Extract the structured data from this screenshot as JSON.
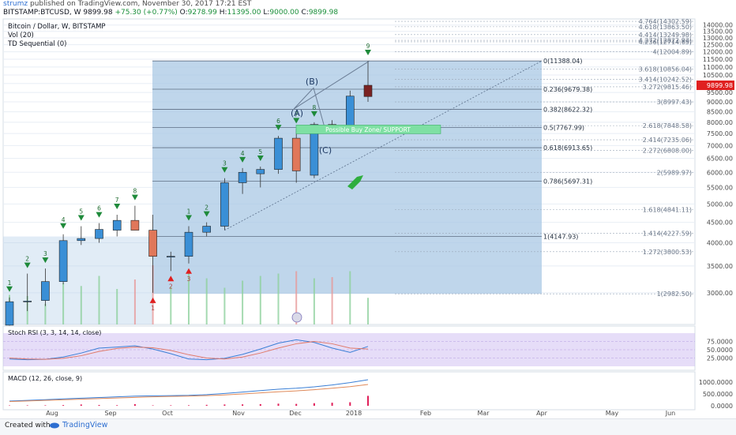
{
  "header": {
    "author": "strumz",
    "published_text": "published on TradingView.com, November 30, 2017 17:21 EST",
    "symbol_info": "BITSTAMP:BTCUSD, W  9899.98",
    "change": "+75.30 (+0.77%)",
    "ohlc": {
      "o_label": "O:",
      "o": "9278.99",
      "h_label": "H:",
      "h": "11395.00",
      "l_label": "L:",
      "l": "9000.00",
      "c_label": "C:",
      "c": "9899.98"
    }
  },
  "legend": {
    "title": "Bitcoin / Dollar, W, BITSTAMP",
    "vol": "Vol (20)",
    "td": "TD Sequential (0)",
    "stoch": "Stoch RSI (3, 3, 14, 14, close)",
    "macd": "MACD (12, 26, close, 9)"
  },
  "colors": {
    "up": "#3a8fd6",
    "down": "#e0775a",
    "background": "#ffffff",
    "zone": "#a9c8e4",
    "stoch_band": "#c8b4f0",
    "grid": "#e8eef5",
    "price_badge": "#e02020",
    "buy_zone": "#7ee0a3",
    "arrow_down": "#1e8a3a",
    "arrow_up": "#e02020"
  },
  "chart_data": {
    "type": "candlestick",
    "title": "Bitcoin / Dollar, W, BITSTAMP",
    "y_scale": "log",
    "ylim": [
      2500,
      14500
    ],
    "y_ticks": [
      3000,
      3500,
      4000,
      4500,
      5000,
      5500,
      6000,
      6500,
      7000,
      7500,
      8000,
      8500,
      9000,
      9500,
      10000,
      10500,
      11000,
      11500,
      12000,
      12500,
      13000,
      13500,
      14000
    ],
    "y_tick_labels": [
      "3000.00",
      "3500.00",
      "4000.00",
      "4500.00",
      "5000.00",
      "5500.00",
      "6000.00",
      "6500.00",
      "7000.00",
      "7500.00",
      "8000.00",
      "8500.00",
      "9000.00",
      "9500.00",
      "10000.00",
      "10500.00",
      "11000.00",
      "11500.00",
      "12000.00",
      "12500.00",
      "13000.00",
      "13500.00",
      "14000.00"
    ],
    "x_tick_labels": [
      "Aug",
      "Sep",
      "Oct",
      "Nov",
      "Dec",
      "2018",
      "Feb",
      "Mar",
      "Apr",
      "May",
      "Jun"
    ],
    "last_price": "9899.98",
    "candles": [
      {
        "week": 1,
        "o": 2490,
        "h": 2920,
        "l": 2380,
        "c": 2850
      },
      {
        "week": 2,
        "o": 2850,
        "h": 3350,
        "l": 2700,
        "c": 2860
      },
      {
        "week": 3,
        "o": 2870,
        "h": 3450,
        "l": 2780,
        "c": 3200
      },
      {
        "week": 4,
        "o": 3200,
        "h": 4200,
        "l": 3150,
        "c": 4050
      },
      {
        "week": 5,
        "o": 4050,
        "h": 4400,
        "l": 3950,
        "c": 4100
      },
      {
        "week": 6,
        "o": 4100,
        "h": 4480,
        "l": 4000,
        "c": 4320
      },
      {
        "week": 7,
        "o": 4300,
        "h": 4700,
        "l": 4150,
        "c": 4550
      },
      {
        "week": 8,
        "o": 4550,
        "h": 4950,
        "l": 4300,
        "c": 4300
      },
      {
        "week": 9,
        "o": 4300,
        "h": 4700,
        "l": 3000,
        "c": 3700
      },
      {
        "week": 10,
        "o": 3700,
        "h": 3800,
        "l": 3400,
        "c": 3700
      },
      {
        "week": 11,
        "o": 3700,
        "h": 4400,
        "l": 3550,
        "c": 4250
      },
      {
        "week": 12,
        "o": 4250,
        "h": 4500,
        "l": 4150,
        "c": 4400
      },
      {
        "week": 13,
        "o": 4400,
        "h": 5800,
        "l": 4300,
        "c": 5650
      },
      {
        "week": 14,
        "o": 5650,
        "h": 6150,
        "l": 5300,
        "c": 6000
      },
      {
        "week": 15,
        "o": 5950,
        "h": 6200,
        "l": 5500,
        "c": 6100
      },
      {
        "week": 16,
        "o": 6100,
        "h": 7400,
        "l": 5950,
        "c": 7300
      },
      {
        "week": 17,
        "o": 7300,
        "h": 7700,
        "l": 5650,
        "c": 6050
      },
      {
        "week": 18,
        "o": 5900,
        "h": 8000,
        "l": 5800,
        "c": 7900
      },
      {
        "week": 19,
        "o": 7900,
        "h": 8100,
        "l": 7650,
        "c": 7750
      },
      {
        "week": 20,
        "o": 7750,
        "h": 9600,
        "l": 7600,
        "c": 9300
      },
      {
        "week": 21,
        "o": 9278.99,
        "h": 11395,
        "l": 9000,
        "c": 9899.98
      }
    ],
    "td_sequential_down_labels": [
      "1",
      "2",
      "3",
      "4",
      "5",
      "6",
      "7",
      "8",
      "",
      "",
      "1",
      "2",
      "3",
      "4",
      "5",
      "6",
      "7",
      "8",
      "",
      "",
      "9"
    ],
    "td_sequential_up_labels": [
      "",
      "",
      "",
      "",
      "",
      "",
      "",
      "",
      "1",
      "2",
      "3"
    ],
    "fib_retracement": [
      {
        "ratio": "0",
        "price": "11388.04"
      },
      {
        "ratio": "0.236",
        "price": "9679.38"
      },
      {
        "ratio": "0.382",
        "price": "8622.32"
      },
      {
        "ratio": "0.5",
        "price": "7767.99"
      },
      {
        "ratio": "0.618",
        "price": "6913.65"
      },
      {
        "ratio": "0.786",
        "price": "5697.31"
      },
      {
        "ratio": "1",
        "price": "4147.93"
      }
    ],
    "fib_extension": [
      {
        "ratio": "4.764",
        "price": "14302.59"
      },
      {
        "ratio": "4.618",
        "price": "13863.50"
      },
      {
        "ratio": "4.414",
        "price": "13249.98"
      },
      {
        "ratio": "4.272",
        "price": "12822.93"
      },
      {
        "ratio": "4.236",
        "price": "12714.65"
      },
      {
        "ratio": "4",
        "price": "12004.89"
      },
      {
        "ratio": "3.618",
        "price": "10856.04"
      },
      {
        "ratio": "3.414",
        "price": "10242.52"
      },
      {
        "ratio": "3.272",
        "price": "9815.46"
      },
      {
        "ratio": "3",
        "price": "8997.43"
      },
      {
        "ratio": "2.618",
        "price": "7848.58"
      },
      {
        "ratio": "2.414",
        "price": "7235.06"
      },
      {
        "ratio": "2.272",
        "price": "6808.00"
      },
      {
        "ratio": "2",
        "price": "5989.97"
      },
      {
        "ratio": "1.618",
        "price": "4841.11"
      },
      {
        "ratio": "1.414",
        "price": "4227.59"
      },
      {
        "ratio": "1.272",
        "price": "3800.53"
      },
      {
        "ratio": "1",
        "price": "2982.50"
      }
    ],
    "annotations": {
      "wave_a": "(A)",
      "wave_b": "(B)",
      "wave_c": "(C)",
      "buy_zone": "Possible Buy Zone/ SUPPORT"
    },
    "stoch_rsi": {
      "y_ticks": [
        "75.0000",
        "50.0000",
        "25.0000"
      ],
      "k": [
        22,
        20,
        21,
        28,
        40,
        55,
        58,
        62,
        52,
        38,
        22,
        20,
        24,
        36,
        52,
        70,
        80,
        72,
        55,
        42,
        60
      ],
      "d": [
        25,
        22,
        21,
        24,
        32,
        45,
        54,
        58,
        56,
        48,
        35,
        25,
        22,
        28,
        40,
        55,
        68,
        75,
        68,
        55,
        52
      ]
    },
    "macd": {
      "y_ticks": [
        "1000.0000",
        "500.0000",
        "0.0000"
      ],
      "histogram": [
        15,
        18,
        20,
        30,
        55,
        35,
        25,
        70,
        18,
        20,
        22,
        40,
        55,
        60,
        70,
        90,
        80,
        110,
        130,
        150,
        420
      ],
      "macd_line": [
        200,
        230,
        260,
        290,
        320,
        350,
        380,
        410,
        420,
        430,
        440,
        470,
        520,
        580,
        640,
        700,
        740,
        800,
        880,
        980,
        1100
      ],
      "signal_line": [
        180,
        205,
        230,
        255,
        280,
        305,
        330,
        355,
        380,
        395,
        410,
        430,
        460,
        500,
        545,
        590,
        630,
        680,
        740,
        810,
        900
      ]
    },
    "volume": [
      500,
      480,
      350,
      700,
      650,
      820,
      600,
      760,
      1000,
      640,
      900,
      780,
      620,
      740,
      820,
      860,
      900,
      780,
      800,
      900,
      450
    ]
  }
}
